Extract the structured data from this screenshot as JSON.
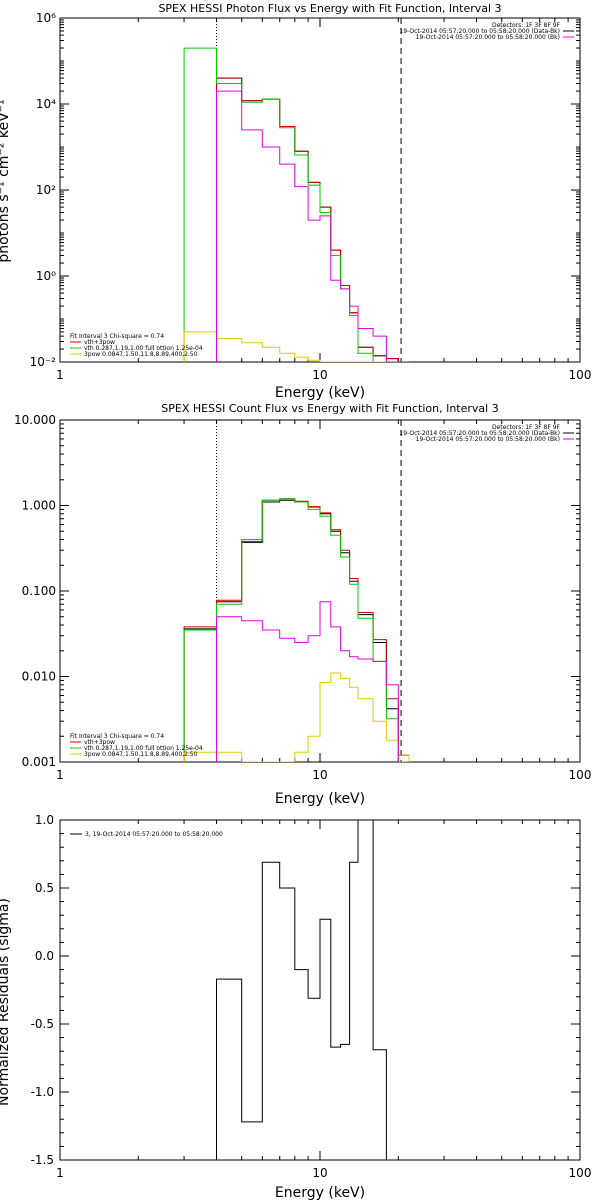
{
  "chart_data": [
    {
      "type": "line",
      "title": "SPEX HESSI Photon Flux vs Energy with Fit Function, Interval 3",
      "xlabel": "Energy (keV)",
      "ylabel": "photons s⁻¹ cm⁻² keV⁻¹",
      "xscale": "log",
      "yscale": "log",
      "xlim": [
        1,
        100
      ],
      "ylim": [
        0.01,
        1000000
      ],
      "xticks": [
        "1",
        "10",
        "100"
      ],
      "yticks": [
        "10⁻²",
        "10⁰",
        "10²",
        "10⁴",
        "10⁶"
      ],
      "edges": [
        3.0,
        4.0,
        5.0,
        6.0,
        7.0,
        8.0,
        9.0,
        10.0,
        11.0,
        12.0,
        13.0,
        14.0,
        16.0,
        18.0,
        20.0,
        22.0
      ],
      "vlines": [
        {
          "x": 4.0,
          "style": "dotted"
        },
        {
          "x": 20.5,
          "style": "dashed"
        }
      ],
      "legend_top_right": [
        "Detectors: 1F 3F 8F 9F",
        "19-Oct-2014 05:57:20.000 to 05:58:20.000 (Data-Bk)",
        "19-Oct-2014 05:57:20.000 to 05:58:20.000 (Bk)"
      ],
      "legend_bottom_left": [
        "Fit Interval 3   Chi-square = 0.74",
        "vth+3pow",
        "vth 0.287,1.19,1.00  full ottion 1.25e-04",
        "3pow 0.0847,1.50,11.8,8.89,400,2.50"
      ],
      "series": [
        {
          "name": "Data-Bk",
          "color": "#000000",
          "start": 1,
          "values": [
            40000,
            12000,
            13000,
            3000,
            800,
            150,
            40,
            4,
            0.6,
            0.14,
            0.022,
            0.014,
            0.012,
            0.01
          ]
        },
        {
          "name": "vth+3pow",
          "color": "#cc0000",
          "start": 1,
          "values": [
            40000,
            12000,
            13000,
            3000,
            800,
            150,
            40,
            4,
            0.6,
            0.14,
            0.022,
            0.014,
            0.012,
            0.01
          ]
        },
        {
          "name": "vth",
          "color": "#00cc00",
          "start": 0,
          "values": [
            200000,
            30000,
            11000,
            13000,
            2800,
            650,
            130,
            30,
            3,
            0.5,
            0.12,
            0.016,
            0.01
          ]
        },
        {
          "name": "3pow",
          "color": "#e6c800",
          "start": 0,
          "values": [
            0.05,
            0.035,
            0.028,
            0.022,
            0.016,
            0.013,
            0.011,
            0.01,
            0.008,
            0.006,
            0.004,
            0.01,
            0.01
          ]
        },
        {
          "name": "Bk",
          "color": "#e600e6",
          "start": 1,
          "values": [
            20000,
            2500,
            1000,
            400,
            120,
            20,
            25,
            0.8,
            0.5,
            0.2,
            0.06,
            0.04,
            0.01
          ]
        }
      ]
    },
    {
      "type": "line",
      "title": "SPEX HESSI Count Flux vs Energy with Fit Function, Interval 3",
      "xlabel": "Energy (keV)",
      "ylabel": "",
      "xscale": "log",
      "yscale": "log",
      "xlim": [
        1,
        100
      ],
      "ylim": [
        0.001,
        10
      ],
      "xticks": [
        "1",
        "10",
        "100"
      ],
      "yticks": [
        "0.001",
        "0.010",
        "0.100",
        "1.000",
        "10.000"
      ],
      "edges": [
        3.0,
        4.0,
        5.0,
        6.0,
        7.0,
        8.0,
        9.0,
        10.0,
        11.0,
        12.0,
        13.0,
        14.0,
        16.0,
        18.0,
        20.0,
        22.0
      ],
      "vlines": [
        {
          "x": 4.0,
          "style": "dotted"
        },
        {
          "x": 20.5,
          "style": "dashed"
        }
      ],
      "legend_top_right": [
        "Detectors: 1F 3F 8F 9F",
        "19-Oct-2014 05:57:20.000 to 05:58:20.000 (Data-Bk)",
        "19-Oct-2014 05:57:20.000 to 05:58:20.000 (Bk)"
      ],
      "legend_bottom_left": [
        "Fit Interval 3   Chi-square = 0.74",
        "vth+3pow",
        "vth 0.287,1.19,1.00  full ottion 1.25e-04",
        "3pow 0.0847,1.50,11.8,8.89,400,2.50"
      ],
      "series": [
        {
          "name": "Data-Bk",
          "color": "#000000",
          "start": 0,
          "values": [
            0.036,
            0.075,
            0.37,
            1.1,
            1.15,
            1.1,
            0.96,
            0.8,
            0.5,
            0.28,
            0.13,
            0.053,
            0.025,
            0.0042,
            0.0012
          ]
        },
        {
          "name": "vth+3pow",
          "color": "#cc0000",
          "start": 0,
          "values": [
            0.038,
            0.078,
            0.38,
            1.15,
            1.2,
            1.12,
            0.97,
            0.82,
            0.52,
            0.3,
            0.14,
            0.056,
            0.027,
            0.0055,
            0.0012
          ]
        },
        {
          "name": "vth",
          "color": "#00cc00",
          "start": 0,
          "values": [
            0.035,
            0.07,
            0.4,
            1.15,
            1.2,
            1.1,
            0.9,
            0.75,
            0.45,
            0.25,
            0.12,
            0.048,
            0.015,
            0.0032,
            0.001
          ]
        },
        {
          "name": "3pow",
          "color": "#e6c800",
          "start": 0,
          "values": [
            0.0013,
            0.0013,
            0.0009,
            0.0009,
            0.0009,
            0.0013,
            0.002,
            0.0085,
            0.011,
            0.0095,
            0.0075,
            0.0055,
            0.003,
            0.0018,
            0.0012
          ]
        },
        {
          "name": "Bk",
          "color": "#e600e6",
          "start": 1,
          "values": [
            0.05,
            0.045,
            0.035,
            0.028,
            0.025,
            0.03,
            0.075,
            0.038,
            0.02,
            0.017,
            0.016,
            0.015,
            0.008
          ]
        }
      ]
    },
    {
      "type": "line",
      "title": "",
      "xlabel": "Energy (keV)",
      "ylabel": "Normalized Residuals (sigma)",
      "xscale": "log",
      "yscale": "linear",
      "xlim": [
        1,
        100
      ],
      "ylim": [
        -1.5,
        1.0
      ],
      "xticks": [
        "1",
        "10",
        "100"
      ],
      "yticks": [
        "-1.5",
        "-1.0",
        "-0.5",
        "0.0",
        "0.5",
        "1.0"
      ],
      "legend_top_left": [
        "3, 19-Oct-2014 05:57:20.000 to 05:58:20.000"
      ],
      "edges": [
        4.0,
        5.0,
        6.0,
        7.0,
        8.0,
        9.0,
        10.0,
        11.0,
        12.0,
        13.0,
        14.0,
        16.0,
        18.0,
        20.0
      ],
      "series": [
        {
          "name": "",
          "color": "#000000",
          "start": 0,
          "values": [
            -0.17,
            -1.22,
            0.69,
            0.5,
            -0.1,
            -0.31,
            0.27,
            -0.67,
            -0.65,
            0.69,
            1.0,
            -0.69,
            -1.5
          ]
        }
      ]
    }
  ]
}
